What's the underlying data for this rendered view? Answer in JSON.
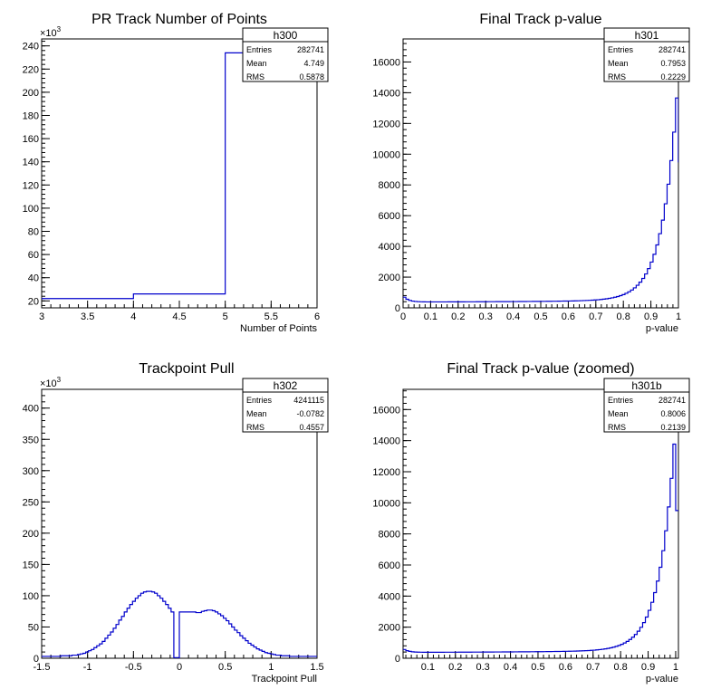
{
  "chart_data": [
    {
      "id": "h300",
      "type": "histogram",
      "title": "PR Track Number of Points",
      "xlabel": "Number of Points",
      "ylabel": "",
      "y_multiplier": "×10^3",
      "xlim": [
        3,
        6
      ],
      "ylim": [
        14,
        246
      ],
      "x_ticks": [
        "3",
        "3.5",
        "4",
        "4.5",
        "5",
        "5.5",
        "6"
      ],
      "y_ticks": [
        "20",
        "40",
        "60",
        "80",
        "100",
        "120",
        "140",
        "160",
        "180",
        "200",
        "220",
        "240"
      ],
      "bin_edges": [
        3,
        4,
        5,
        6
      ],
      "values": [
        22,
        26,
        234
      ],
      "stats": {
        "name": "h300",
        "entries": "282741",
        "mean": "4.749",
        "rms": "0.5878"
      }
    },
    {
      "id": "h301",
      "type": "histogram",
      "title": "Final Track p-value",
      "xlabel": "p-value",
      "ylabel": "",
      "xlim": [
        0,
        1
      ],
      "ylim": [
        0,
        17500
      ],
      "x_ticks": [
        "0",
        "0.1",
        "0.2",
        "0.3",
        "0.4",
        "0.5",
        "0.6",
        "0.7",
        "0.8",
        "0.9",
        "1"
      ],
      "y_ticks": [
        "0",
        "2000",
        "4000",
        "6000",
        "8000",
        "10000",
        "12000",
        "14000",
        "16000"
      ],
      "stats": {
        "name": "h301",
        "entries": "282741",
        "mean": "0.7953",
        "rms": "0.2229"
      }
    },
    {
      "id": "h302",
      "type": "histogram",
      "title": "Trackpoint Pull",
      "xlabel": "Trackpoint Pull",
      "ylabel": "",
      "y_multiplier": "×10^3",
      "xlim": [
        -1.5,
        1.5
      ],
      "ylim": [
        0,
        430
      ],
      "x_ticks": [
        "-1.5",
        "-1",
        "-0.5",
        "0",
        "0.5",
        "1",
        "1.5"
      ],
      "y_ticks": [
        "0",
        "50",
        "100",
        "150",
        "200",
        "250",
        "300",
        "350",
        "400"
      ],
      "stats": {
        "name": "h302",
        "entries": "4241115",
        "mean": "-0.0782",
        "rms": "0.4557"
      }
    },
    {
      "id": "h301b",
      "type": "histogram",
      "title": "Final Track p-value (zoomed)",
      "xlabel": "p-value",
      "ylabel": "",
      "xlim": [
        0.01,
        1.01
      ],
      "ylim": [
        0,
        17300
      ],
      "x_ticks": [
        "0.1",
        "0.2",
        "0.3",
        "0.4",
        "0.5",
        "0.6",
        "0.7",
        "0.8",
        "0.9",
        "1"
      ],
      "y_ticks": [
        "0",
        "2000",
        "4000",
        "6000",
        "8000",
        "10000",
        "12000",
        "14000",
        "16000"
      ],
      "stats": {
        "name": "h301b",
        "entries": "282741",
        "mean": "0.8006",
        "rms": "0.2139"
      }
    }
  ],
  "labels": {
    "entries": "Entries",
    "mean": "Mean",
    "rms": "RMS"
  },
  "colors": {
    "line": "#0000cc",
    "axis": "#000000"
  }
}
